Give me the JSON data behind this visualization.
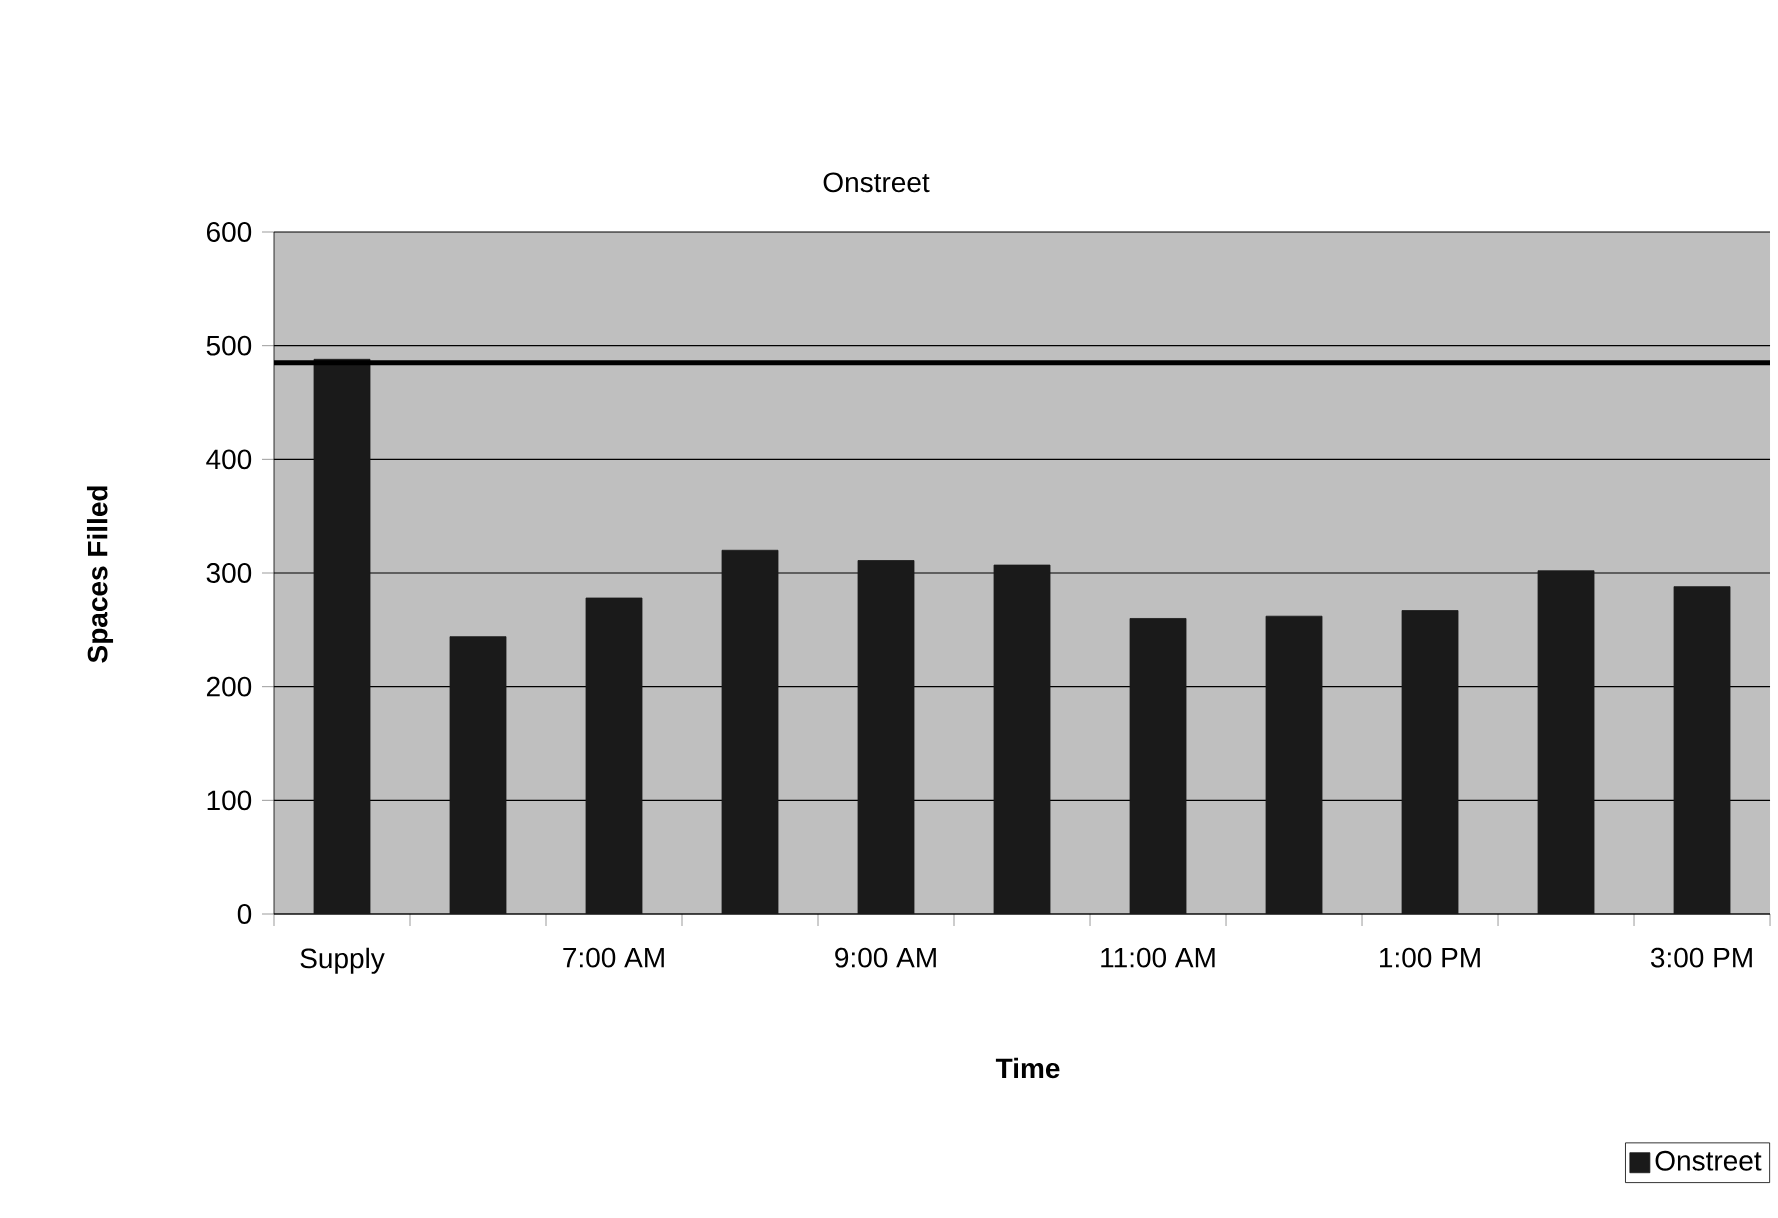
{
  "chart_data": {
    "type": "bar",
    "title": "Onstreet",
    "xlabel": "Time",
    "ylabel": "Spaces Filled",
    "categories": [
      "Supply",
      null,
      "7:00 AM",
      null,
      "9:00 AM",
      null,
      "11:00 AM",
      null,
      "1:00 PM",
      null,
      "3:00 PM"
    ],
    "series": [
      {
        "name": "Onstreet",
        "color": "#1a1a1a",
        "values": [
          488,
          244,
          278,
          320,
          311,
          307,
          260,
          262,
          267,
          302,
          288
        ]
      }
    ],
    "ylim": [
      0,
      600
    ],
    "yticks": [
      0,
      100,
      200,
      300,
      400,
      500,
      600
    ],
    "ref_lines": [
      {
        "axis": "y",
        "value": 485,
        "color": "#000000"
      }
    ],
    "grid": "y",
    "legend": "bottom right"
  }
}
